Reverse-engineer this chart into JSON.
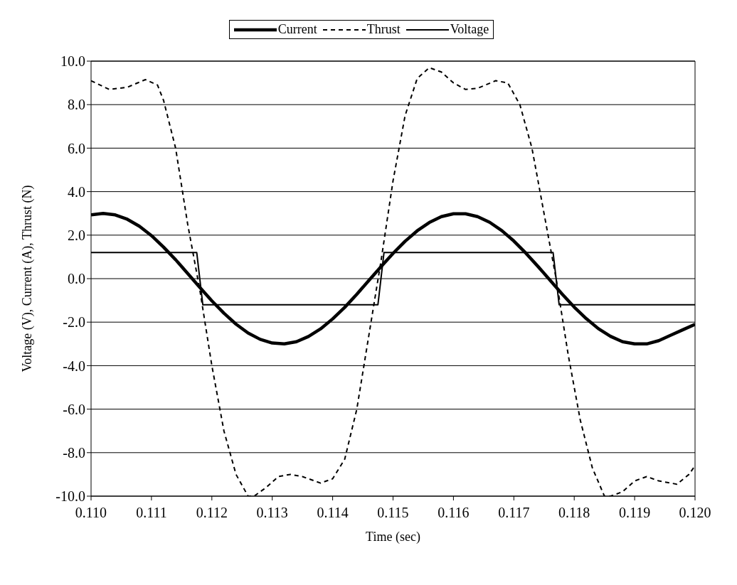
{
  "chart_data": {
    "type": "line",
    "xlabel": "Time (sec)",
    "ylabel": "Voltage (V), Current (A), Thrust (N)",
    "xlim": [
      0.11,
      0.12
    ],
    "xticks": [
      {
        "value": 0.11,
        "label": "0.110"
      },
      {
        "value": 0.111,
        "label": "0.111"
      },
      {
        "value": 0.112,
        "label": "0.112"
      },
      {
        "value": 0.113,
        "label": "0.113"
      },
      {
        "value": 0.114,
        "label": "0.114"
      },
      {
        "value": 0.115,
        "label": "0.115"
      },
      {
        "value": 0.116,
        "label": "0.116"
      },
      {
        "value": 0.117,
        "label": "0.117"
      },
      {
        "value": 0.118,
        "label": "0.118"
      },
      {
        "value": 0.119,
        "label": "0.119"
      },
      {
        "value": 0.12,
        "label": "0.120"
      }
    ],
    "ylim": [
      -10,
      10
    ],
    "yticks": [
      {
        "value": -10,
        "label": "-10.0"
      },
      {
        "value": -8,
        "label": "-8.0"
      },
      {
        "value": -6,
        "label": "-6.0"
      },
      {
        "value": -4,
        "label": "-4.0"
      },
      {
        "value": -2,
        "label": "-2.0"
      },
      {
        "value": 0,
        "label": "0.0"
      },
      {
        "value": 2,
        "label": "2.0"
      },
      {
        "value": 4,
        "label": "4.0"
      },
      {
        "value": 6,
        "label": "6.0"
      },
      {
        "value": 8,
        "label": "8.0"
      },
      {
        "value": 10,
        "label": "10.0"
      }
    ],
    "grid": "y",
    "legend": "top",
    "marker": "none",
    "series": [
      {
        "name": "Current",
        "color": "#000000",
        "line_style": "solid",
        "x": [
          0.11,
          0.1102,
          0.1104,
          0.1106,
          0.1108,
          0.111,
          0.1112,
          0.1114,
          0.1116,
          0.1118,
          0.112,
          0.1122,
          0.1124,
          0.1126,
          0.1128,
          0.113,
          0.1132,
          0.1134,
          0.1136,
          0.1138,
          0.114,
          0.1142,
          0.1144,
          0.1146,
          0.1148,
          0.115,
          0.1152,
          0.1154,
          0.1156,
          0.1158,
          0.116,
          0.1162,
          0.1164,
          0.1166,
          0.1168,
          0.117,
          0.1172,
          0.1174,
          0.1176,
          0.1178,
          0.118,
          0.1182,
          0.1184,
          0.1186,
          0.1188,
          0.119,
          0.1192,
          0.1194,
          0.1196,
          0.1198,
          0.12
        ],
        "values": [
          2.93,
          3.0,
          2.93,
          2.73,
          2.41,
          1.98,
          1.45,
          0.87,
          0.24,
          -0.4,
          -1.02,
          -1.59,
          -2.09,
          -2.5,
          -2.79,
          -2.96,
          -3.0,
          -2.9,
          -2.66,
          -2.31,
          -1.85,
          -1.32,
          -0.72,
          -0.08,
          0.55,
          1.16,
          1.72,
          2.2,
          2.58,
          2.85,
          2.98,
          2.98,
          2.85,
          2.59,
          2.21,
          1.73,
          1.17,
          0.56,
          -0.07,
          -0.71,
          -1.31,
          -1.84,
          -2.3,
          -2.65,
          -2.9,
          -3.0,
          -3.0,
          -2.85,
          -2.6,
          -2.35,
          -2.1
        ]
      },
      {
        "name": "Thrust",
        "color": "#000000",
        "line_style": "dashed",
        "x": [
          0.11,
          0.1103,
          0.1106,
          0.1109,
          0.1111,
          0.1112,
          0.1114,
          0.1116,
          0.1118,
          0.112,
          0.1122,
          0.1124,
          0.1126,
          0.1127,
          0.1129,
          0.1131,
          0.1133,
          0.1135,
          0.1138,
          0.114,
          0.1142,
          0.1144,
          0.1146,
          0.1148,
          0.115,
          0.1152,
          0.1154,
          0.1156,
          0.1158,
          0.116,
          0.1162,
          0.1164,
          0.1167,
          0.1169,
          0.1171,
          0.1173,
          0.1175,
          0.1177,
          0.1179,
          0.1181,
          0.1183,
          0.1185,
          0.1186,
          0.1188,
          0.119,
          0.1192,
          0.1194,
          0.1197,
          0.1199,
          0.12
        ],
        "values": [
          9.1,
          8.7,
          8.8,
          9.15,
          8.9,
          8.2,
          6.0,
          2.5,
          -0.5,
          -4.0,
          -7.0,
          -9.0,
          -10.0,
          -10.0,
          -9.6,
          -9.1,
          -9.0,
          -9.1,
          -9.4,
          -9.2,
          -8.3,
          -6.0,
          -2.6,
          0.8,
          4.5,
          7.5,
          9.2,
          9.7,
          9.5,
          9.0,
          8.7,
          8.75,
          9.1,
          9.0,
          8.0,
          6.0,
          3.0,
          0.0,
          -3.5,
          -6.5,
          -8.7,
          -10.0,
          -10.0,
          -9.8,
          -9.3,
          -9.1,
          -9.3,
          -9.45,
          -9.0,
          -8.6
        ]
      },
      {
        "name": "Voltage",
        "color": "#000000",
        "line_style": "solid",
        "x": [
          0.11,
          0.11175,
          0.11185,
          0.11475,
          0.11485,
          0.11765,
          0.11775,
          0.12
        ],
        "values": [
          1.2,
          1.2,
          -1.2,
          -1.2,
          1.2,
          1.2,
          -1.2,
          -1.2
        ]
      }
    ]
  }
}
